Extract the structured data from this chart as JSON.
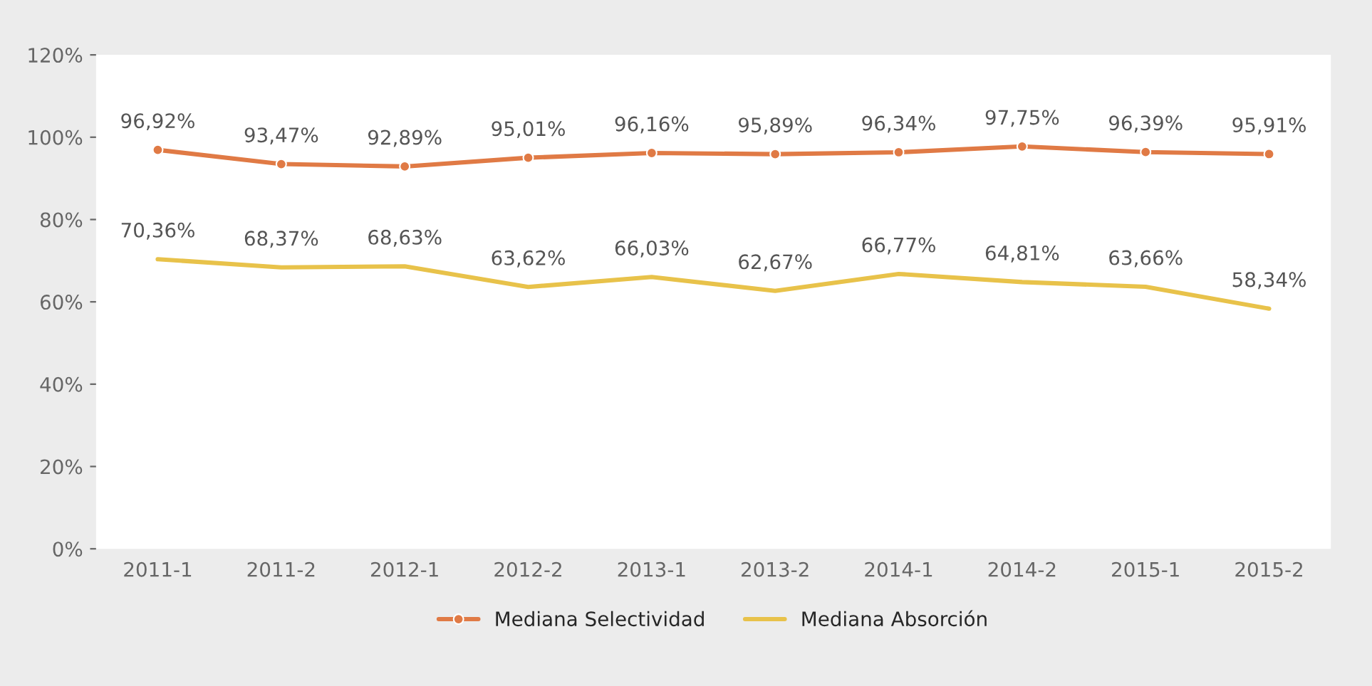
{
  "chart_data": {
    "type": "line",
    "categories": [
      "2011-1",
      "2011-2",
      "2012-1",
      "2012-2",
      "2013-1",
      "2013-2",
      "2014-1",
      "2014-2",
      "2015-1",
      "2015-2"
    ],
    "series": [
      {
        "name": "Mediana Selectividad",
        "color": "#e07a45",
        "marker": "circle",
        "values": [
          96.92,
          93.47,
          92.89,
          95.01,
          96.16,
          95.89,
          96.34,
          97.75,
          96.39,
          95.91
        ],
        "value_labels": [
          "96,92%",
          "93,47%",
          "92,89%",
          "95,01%",
          "96,16%",
          "95,89%",
          "96,34%",
          "97,75%",
          "96,39%",
          "95,91%"
        ]
      },
      {
        "name": "Mediana Absorción",
        "color": "#e8c24a",
        "marker": "none",
        "values": [
          70.36,
          68.37,
          68.63,
          63.62,
          66.03,
          62.67,
          66.77,
          64.81,
          63.66,
          58.34
        ],
        "value_labels": [
          "70,36%",
          "68,37%",
          "68,63%",
          "63,62%",
          "66,03%",
          "62,67%",
          "66,77%",
          "64,81%",
          "63,66%",
          "58,34%"
        ]
      }
    ],
    "ylim": [
      0,
      120
    ],
    "yticks": [
      {
        "value": 0,
        "label": "0%"
      },
      {
        "value": 20,
        "label": "20%"
      },
      {
        "value": 40,
        "label": "40%"
      },
      {
        "value": 60,
        "label": "60%"
      },
      {
        "value": 80,
        "label": "80%"
      },
      {
        "value": 100,
        "label": "100%"
      },
      {
        "value": 120,
        "label": "120%"
      }
    ],
    "legend": "bottom"
  }
}
